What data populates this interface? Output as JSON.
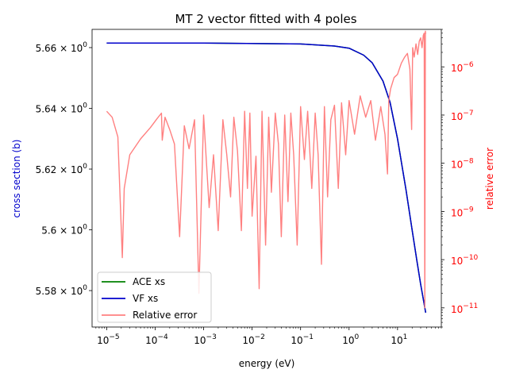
{
  "chart_data": {
    "type": "line",
    "title": "MT 2 vector fitted with 4 poles",
    "xlabel": "energy (eV)",
    "ylabel_left": "cross section (b)",
    "ylabel_right": "relative error",
    "xscale": "log",
    "xlim": [
      5e-06,
      80
    ],
    "ylim_left": [
      5.568,
      5.666
    ],
    "yscale_right": "log",
    "ylim_right": [
      4e-12,
      6e-06
    ],
    "x_ticks": [
      {
        "value": 1e-05,
        "base": "10",
        "exp": "−5"
      },
      {
        "value": 0.0001,
        "base": "10",
        "exp": "−4"
      },
      {
        "value": 0.001,
        "base": "10",
        "exp": "−3"
      },
      {
        "value": 0.01,
        "base": "10",
        "exp": "−2"
      },
      {
        "value": 0.1,
        "base": "10",
        "exp": "−1"
      },
      {
        "value": 1,
        "base": "10",
        "exp": "0"
      },
      {
        "value": 10,
        "base": "10",
        "exp": "1"
      }
    ],
    "y_left_ticks": [
      {
        "value": 5.58,
        "mant": "5.58 × 10",
        "exp": "0"
      },
      {
        "value": 5.6,
        "mant": "5.6 × 10",
        "exp": "0"
      },
      {
        "value": 5.62,
        "mant": "5.62 × 10",
        "exp": "0"
      },
      {
        "value": 5.64,
        "mant": "5.64 × 10",
        "exp": "0"
      },
      {
        "value": 5.66,
        "mant": "5.66 × 10",
        "exp": "0"
      }
    ],
    "y_right_ticks": [
      {
        "value": 1e-11,
        "base": "10",
        "exp": "−11"
      },
      {
        "value": 1e-10,
        "base": "10",
        "exp": "−10"
      },
      {
        "value": 1e-09,
        "base": "10",
        "exp": "−9"
      },
      {
        "value": 1e-08,
        "base": "10",
        "exp": "−8"
      },
      {
        "value": 1e-07,
        "base": "10",
        "exp": "−7"
      },
      {
        "value": 1e-06,
        "base": "10",
        "exp": "−6"
      }
    ],
    "series": [
      {
        "name": "ACE xs",
        "color": "#008000",
        "axis": "left",
        "x": [
          1e-05,
          0.001,
          0.1,
          0.5,
          1,
          2,
          3,
          5,
          7,
          10,
          15,
          20,
          25,
          30,
          35,
          38
        ],
        "y": [
          5.6615,
          5.6615,
          5.6612,
          5.6605,
          5.6598,
          5.6575,
          5.655,
          5.649,
          5.642,
          5.63,
          5.613,
          5.6,
          5.59,
          5.582,
          5.576,
          5.5727
        ]
      },
      {
        "name": "VF xs",
        "color": "#0000cc",
        "axis": "left",
        "x": [
          1e-05,
          0.001,
          0.1,
          0.5,
          1,
          2,
          3,
          5,
          7,
          10,
          15,
          20,
          25,
          30,
          35,
          38
        ],
        "y": [
          5.6615,
          5.6615,
          5.6612,
          5.6605,
          5.6598,
          5.6575,
          5.655,
          5.649,
          5.642,
          5.63,
          5.613,
          5.6,
          5.59,
          5.582,
          5.576,
          5.5727
        ]
      },
      {
        "name": "Relative error",
        "color": "#ff8080",
        "axis": "right",
        "x": [
          1e-05,
          1.3e-05,
          1.7e-05,
          2.1e-05,
          2.3e-05,
          3e-05,
          5e-05,
          8e-05,
          0.00011,
          0.000135,
          0.00014,
          0.00016,
          0.0002,
          0.00025,
          0.00032,
          0.0004,
          0.0005,
          0.00065,
          0.0008,
          0.001,
          0.0013,
          0.0016,
          0.002,
          0.0025,
          0.003,
          0.0036,
          0.0042,
          0.005,
          0.006,
          0.007,
          0.008,
          0.009,
          0.01,
          0.012,
          0.014,
          0.016,
          0.019,
          0.022,
          0.025,
          0.03,
          0.035,
          0.04,
          0.047,
          0.055,
          0.063,
          0.072,
          0.085,
          0.1,
          0.12,
          0.14,
          0.17,
          0.2,
          0.23,
          0.27,
          0.31,
          0.36,
          0.42,
          0.5,
          0.6,
          0.7,
          0.85,
          1.0,
          1.3,
          1.7,
          2.2,
          2.8,
          3.5,
          4.5,
          5.5,
          6.2,
          6.6,
          7.2,
          8.5,
          10,
          12,
          14,
          16,
          18,
          19.5,
          20.5,
          22,
          24,
          26,
          28,
          30,
          32,
          34,
          35.5,
          36.5,
          37.5,
          38
        ],
        "y": [
          1.2e-07,
          9e-08,
          3.5e-08,
          1.1e-10,
          3e-09,
          1.5e-08,
          3.2e-08,
          5.5e-08,
          8.5e-08,
          1.1e-07,
          3e-08,
          9e-08,
          5e-08,
          2.5e-08,
          3e-10,
          6e-08,
          2e-08,
          8e-08,
          2e-11,
          1e-07,
          1.2e-09,
          1.5e-08,
          4e-10,
          8e-08,
          1.5e-08,
          2e-09,
          9e-08,
          1.8e-08,
          4e-10,
          1.2e-07,
          3e-09,
          1.1e-07,
          8e-10,
          1.4e-08,
          2.5e-11,
          1.2e-07,
          2e-10,
          9e-08,
          2.5e-09,
          1.1e-07,
          2.5e-08,
          3e-10,
          1e-07,
          1.6e-09,
          1.1e-07,
          1.5e-08,
          2e-10,
          1.5e-07,
          1.2e-08,
          1.2e-07,
          3e-09,
          1.1e-07,
          1.5e-08,
          8e-11,
          1.5e-07,
          2e-09,
          8e-08,
          1.6e-07,
          3e-09,
          1.8e-07,
          1.5e-08,
          2e-07,
          4e-08,
          2.5e-07,
          9e-08,
          2e-07,
          3e-08,
          1.5e-07,
          4e-08,
          6e-09,
          2e-07,
          3.5e-07,
          6e-07,
          7e-07,
          1.2e-06,
          1.6e-06,
          1.9e-06,
          9e-07,
          5e-08,
          2.5e-06,
          1.6e-06,
          3e-06,
          1.8e-06,
          3.4e-06,
          4e-06,
          2.5e-06,
          4.5e-06,
          5e-06,
          1e-11,
          5.5e-06,
          4.8e-06
        ]
      }
    ],
    "legend": {
      "location": "lower-left",
      "entries": [
        "ACE xs",
        "VF xs",
        "Relative error"
      ]
    }
  }
}
